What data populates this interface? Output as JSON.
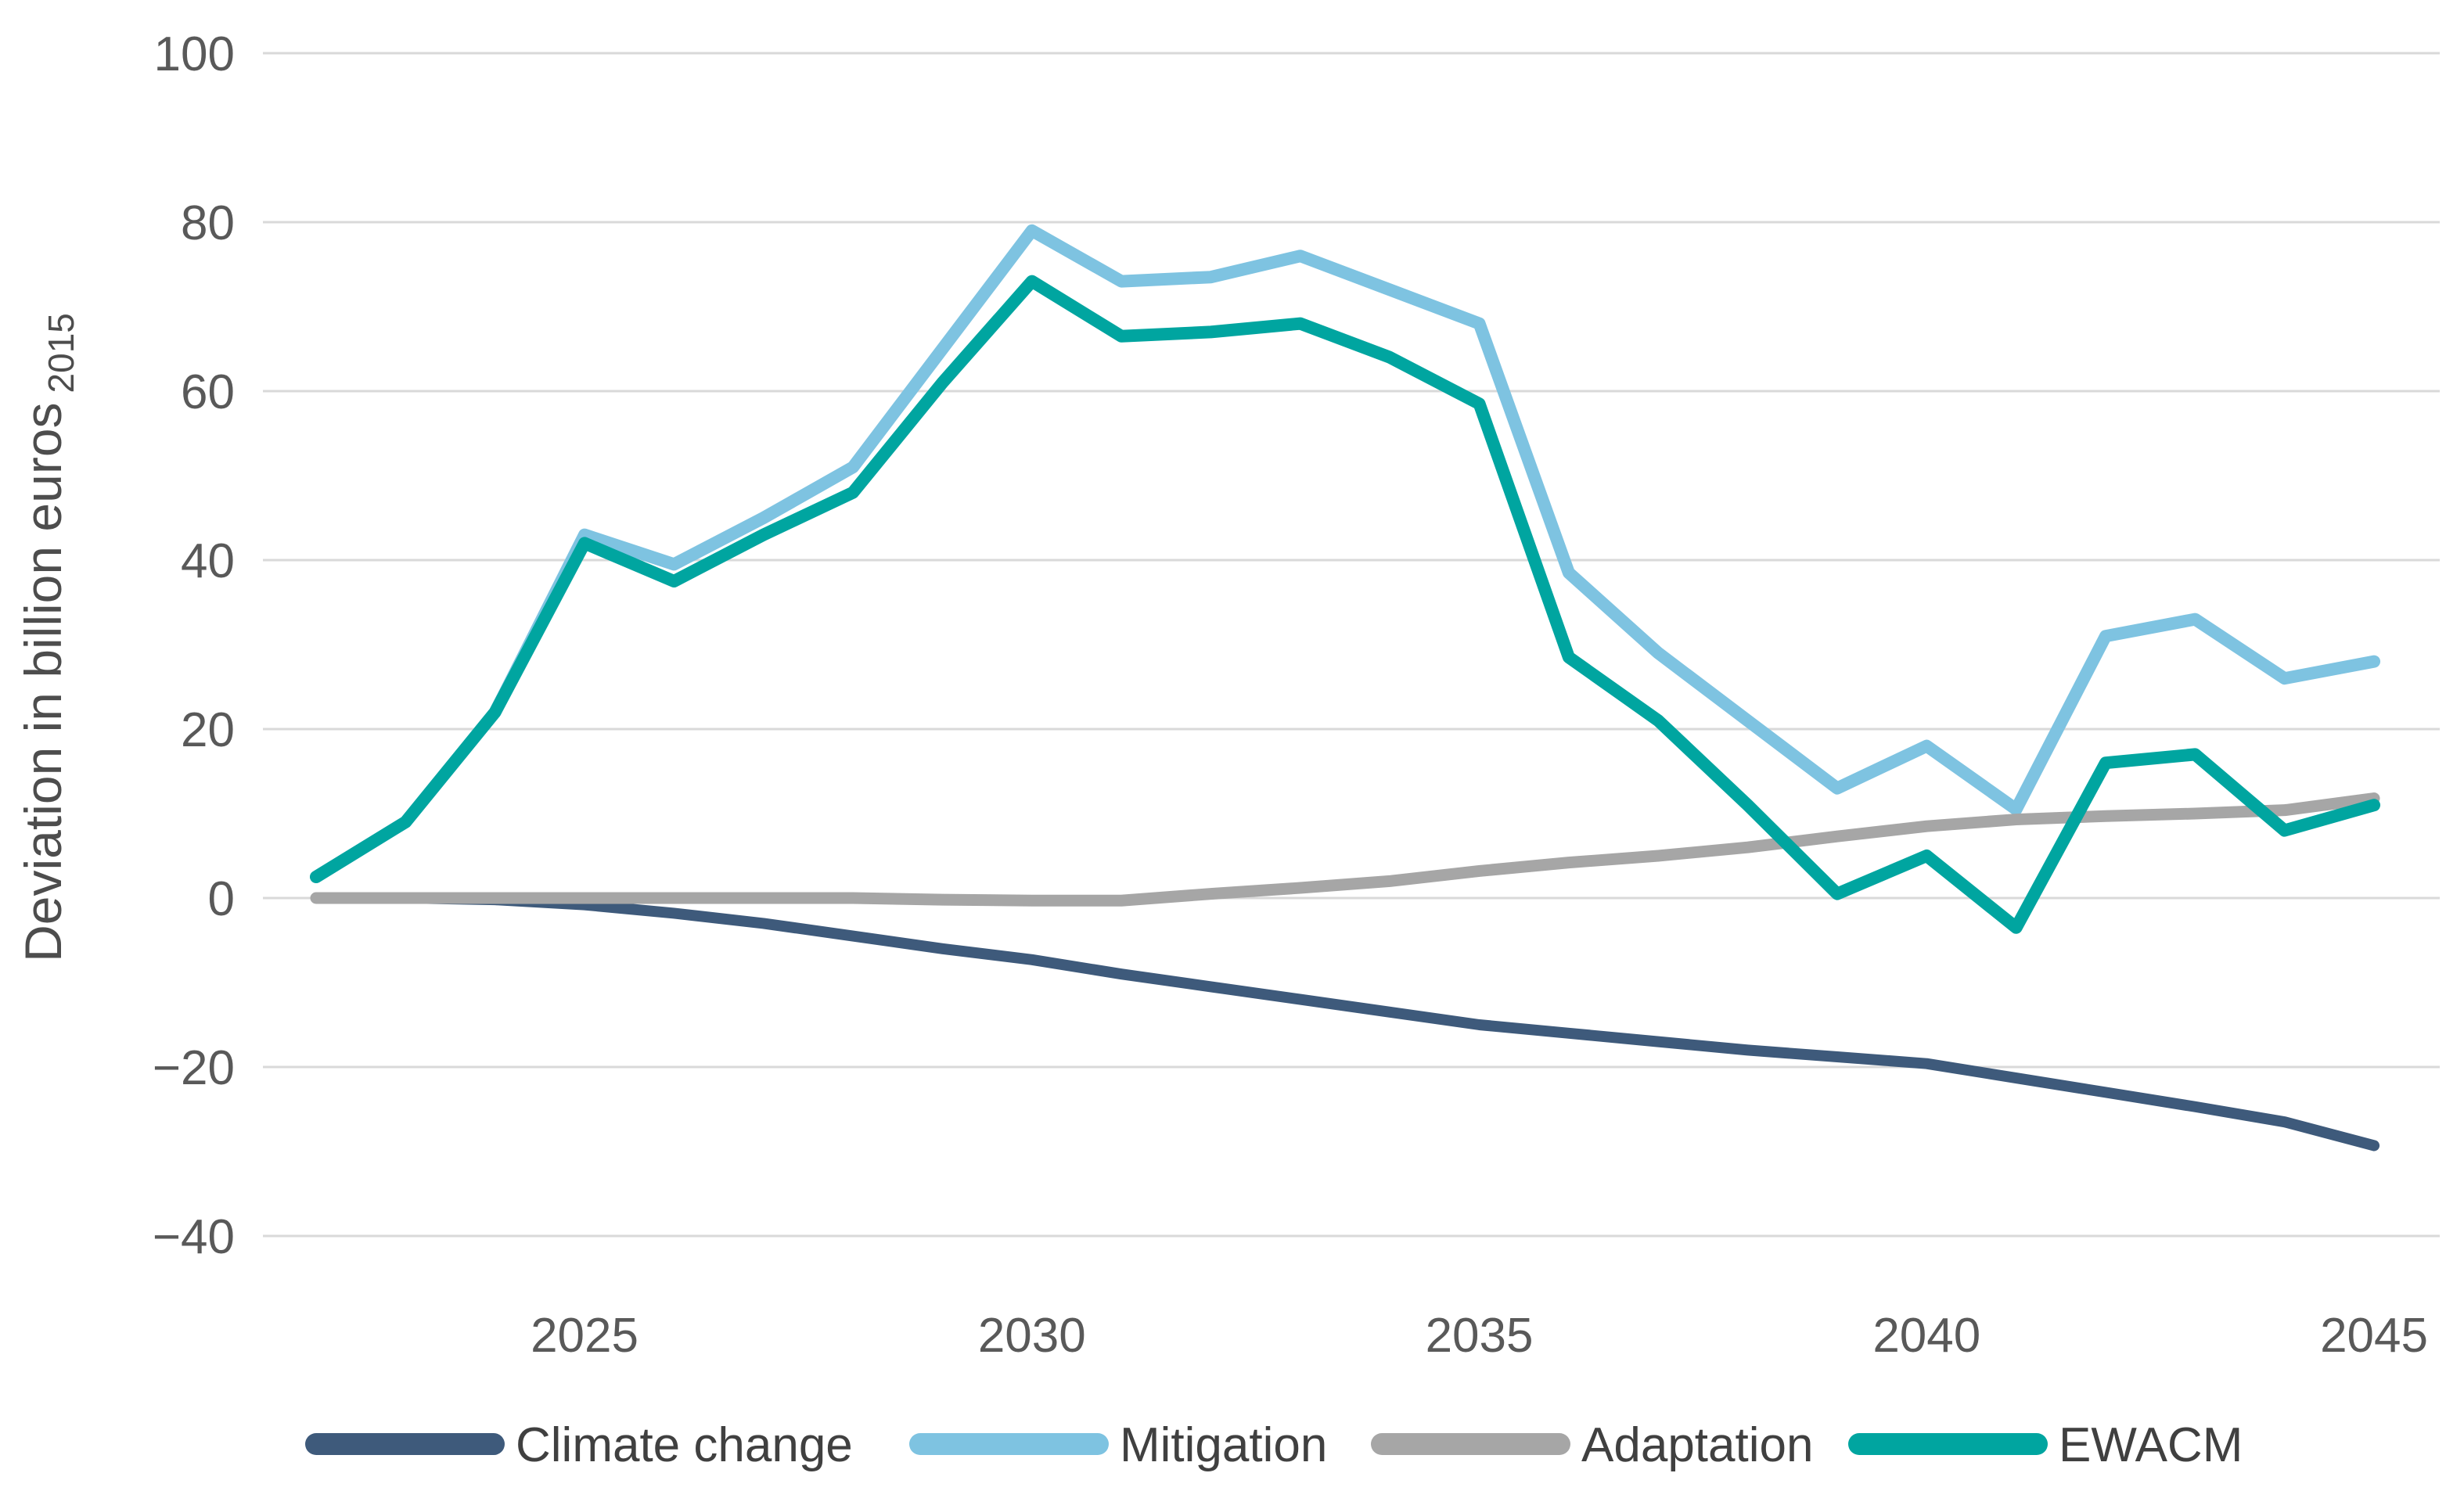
{
  "chart_data": {
    "type": "line",
    "title": "",
    "ylabel": "Deviation in billion euros",
    "ylabel_subscript": "2015",
    "xlabel": "",
    "x": [
      2022,
      2023,
      2024,
      2025,
      2026,
      2027,
      2028,
      2029,
      2030,
      2031,
      2032,
      2033,
      2034,
      2035,
      2036,
      2037,
      2038,
      2039,
      2040,
      2041,
      2042,
      2043,
      2044,
      2045
    ],
    "x_ticks": [
      2025,
      2030,
      2035,
      2040,
      2045
    ],
    "x_tick_labels": [
      "2025",
      "2030",
      "2035",
      "2040",
      "2045"
    ],
    "y_ticks": [
      100,
      80,
      60,
      40,
      20,
      0,
      -20,
      -40
    ],
    "y_tick_labels": [
      "100",
      "80",
      "60",
      "40",
      "20",
      "0",
      "−20",
      "−40"
    ],
    "ylim": [
      -48,
      104
    ],
    "grid": "horizontal-only",
    "legend_position": "bottom",
    "series": [
      {
        "name": "Climate change",
        "color": "#3e5a7b",
        "values": [
          0,
          0,
          -0.2,
          -0.8,
          -1.8,
          -3,
          -4.5,
          -6,
          -7.3,
          -9,
          -10.5,
          -12,
          -13.5,
          -15,
          -16,
          -17,
          -18,
          -18.8,
          -19.6,
          -21.3,
          -23,
          -24.7,
          -26.5,
          -29.3
        ]
      },
      {
        "name": "Mitigation",
        "color": "#7ec3e1",
        "values": [
          2.5,
          9,
          22,
          43,
          39.5,
          45,
          51,
          65,
          79,
          73,
          73.5,
          76,
          72,
          68,
          38.5,
          29,
          21,
          13,
          18,
          10.5,
          31,
          33,
          26,
          28
        ]
      },
      {
        "name": "Adaptation",
        "color": "#a6a6a6",
        "values": [
          0,
          0,
          0,
          0,
          0,
          0,
          0,
          -0.2,
          -0.3,
          -0.3,
          0.5,
          1.2,
          2,
          3.2,
          4.2,
          5,
          6,
          7.3,
          8.5,
          9.3,
          9.7,
          10,
          10.4,
          11.8
        ]
      },
      {
        "name": "EWACM",
        "color": "#00a5a0",
        "values": [
          2.5,
          9,
          22,
          42,
          37.5,
          43,
          48,
          61,
          73,
          66.5,
          67,
          68,
          64,
          58.5,
          28.5,
          21,
          11,
          0.5,
          5,
          -3.5,
          16,
          17,
          8,
          11
        ]
      }
    ],
    "colors": {
      "background": "#ffffff",
      "gridline": "#d9d9d9",
      "axis_text": "#595959",
      "legend_text": "#404040"
    }
  }
}
